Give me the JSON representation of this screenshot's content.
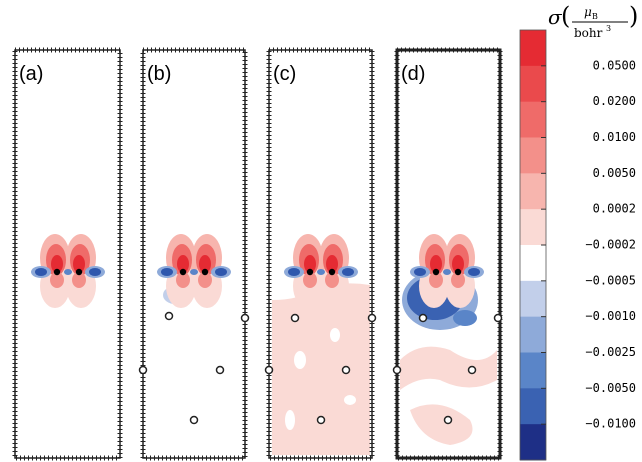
{
  "panels": [
    {
      "label": "(a)"
    },
    {
      "label": "(b)"
    },
    {
      "label": "(c)"
    },
    {
      "label": "(d)"
    }
  ],
  "colorbar": {
    "title": {
      "symbol": "σ",
      "numerator": "μ",
      "numerator_sub": "B",
      "denominator": "bohr",
      "denominator_sup": "3"
    },
    "labels": [
      "0.0500",
      "0.0200",
      "0.0100",
      "0.0050",
      "0.0002",
      "−0.0002",
      "−0.0005",
      "−0.0010",
      "−0.0025",
      "−0.0050",
      "−0.0100"
    ],
    "colors": [
      "#e52b33",
      "#ea4a4c",
      "#ef6b69",
      "#f3908a",
      "#f7b5ae",
      "#fadad5",
      "#ffffff",
      "#c2cfea",
      "#8eaad9",
      "#5a85c8",
      "#3a62b2",
      "#1e2f86"
    ]
  }
}
